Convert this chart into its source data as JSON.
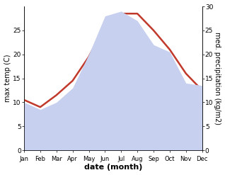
{
  "months": [
    "Jan",
    "Feb",
    "Mar",
    "Apr",
    "May",
    "Jun",
    "Jul",
    "Aug",
    "Sep",
    "Oct",
    "Nov",
    "Dec"
  ],
  "temp_max": [
    10.5,
    9.0,
    11.5,
    14.5,
    19.5,
    26.0,
    28.5,
    28.5,
    25.0,
    21.0,
    16.0,
    12.5
  ],
  "precipitation": [
    10.0,
    8.5,
    10.0,
    13.0,
    20.0,
    28.0,
    29.0,
    27.0,
    22.0,
    20.5,
    14.0,
    13.5
  ],
  "temp_color": "#c0392b",
  "fill_color": "#c8d0f0",
  "fill_edge_color": "#a0a8d8",
  "fill_alpha": 1.0,
  "temp_ylim": [
    0,
    30
  ],
  "precip_ylim": [
    0,
    30
  ],
  "xlabel": "date (month)",
  "ylabel_left": "max temp (C)",
  "ylabel_right": "med. precipitation (kg/m2)",
  "label_fontsize": 7,
  "tick_fontsize": 6.5,
  "linewidth": 1.8
}
